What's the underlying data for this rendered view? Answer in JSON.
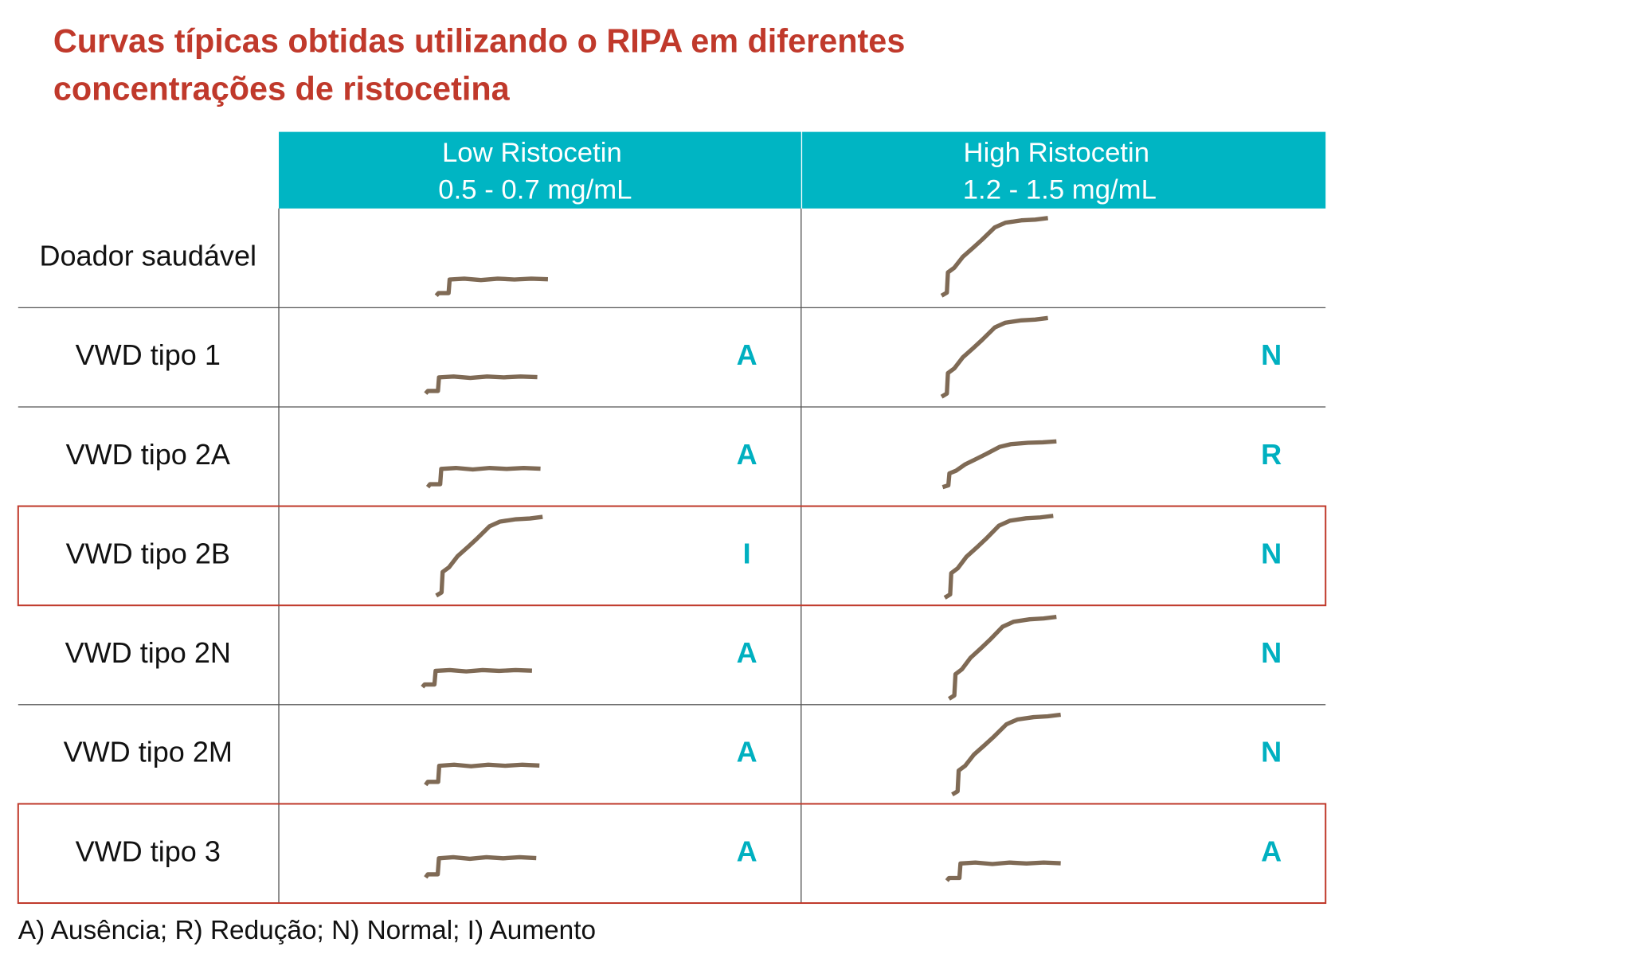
{
  "header": {
    "title_lines": [
      "Curvas típicas obtidas utilizando o RIPA em diferentes",
      "concentrações de ristocetina"
    ]
  },
  "table": {
    "columns": [
      {
        "name": "Low Ristocetin",
        "range": "0.5 - 0.7 mg/mL"
      },
      {
        "name": "High Ristocetin",
        "range": "1.2 - 1.5 mg/mL"
      }
    ],
    "rows": [
      {
        "label": "Doador saudável"
      },
      {
        "label": "VWD tipo 1",
        "low": "A",
        "high": "N"
      },
      {
        "label": "VWD tipo 2A",
        "low": "A",
        "high": "R"
      },
      {
        "label": "VWD tipo 2B",
        "low": "I",
        "high": "N"
      },
      {
        "label": "VWD tipo 2N",
        "low": "A",
        "high": "N"
      },
      {
        "label": "VWD tipo 2M",
        "low": "A",
        "high": "N"
      },
      {
        "label": "VWD tipo 3",
        "low": "A",
        "high": "A"
      }
    ]
  },
  "footnote": "A) Ausência; R) Redução; N) Normal; I) Aumento"
}
